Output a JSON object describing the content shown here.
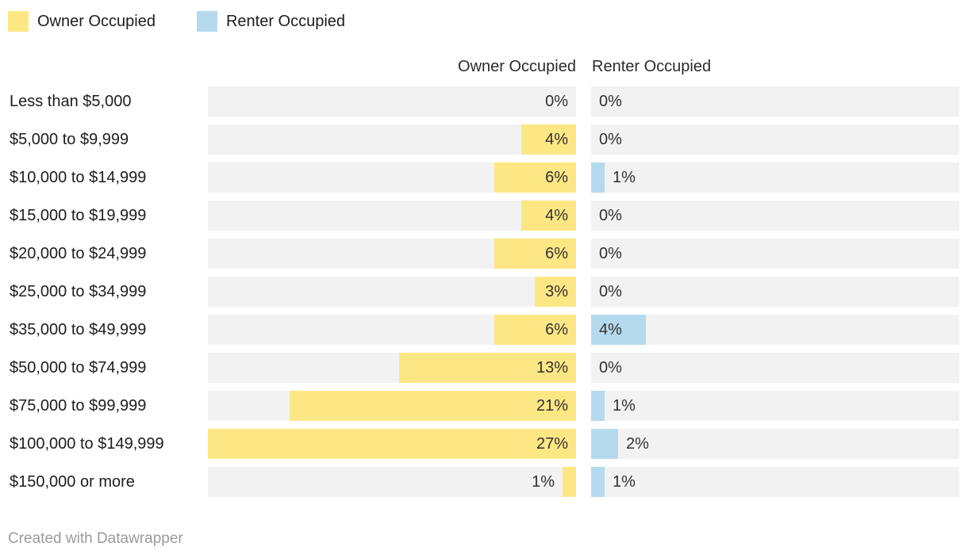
{
  "legend": {
    "items": [
      {
        "label": "Owner Occupied",
        "color": "#FDE784"
      },
      {
        "label": "Renter Occupied",
        "color": "#B5DAED"
      }
    ]
  },
  "headers": {
    "owner": "Owner Occupied",
    "renter": "Renter Occupied"
  },
  "footer": {
    "text": "Created with Datawrapper"
  },
  "colors": {
    "background": "#FFFFFF",
    "track": "#F2F2F2",
    "owner_bar": "#FDE784",
    "renter_bar": "#B5DAED",
    "label_text": "#1D1D1D",
    "value_text": "#313131",
    "footer_text": "#9B9B9B"
  },
  "chart_data": {
    "type": "bar",
    "orientation": "horizontal",
    "title": "",
    "unit": "%",
    "max_value": 27,
    "axis_range": [
      0,
      27
    ],
    "grid": false,
    "legend_position": "top-left",
    "categories": [
      "Less than $5,000",
      "$5,000 to $9,999",
      "$10,000 to $14,999",
      "$15,000 to $19,999",
      "$20,000 to $24,999",
      "$25,000 to $34,999",
      "$35,000 to $49,999",
      "$50,000 to $74,999",
      "$75,000 to $99,999",
      "$100,000 to $149,999",
      "$150,000 or more"
    ],
    "series": [
      {
        "name": "Owner Occupied",
        "color": "#FDE784",
        "alignment": "right",
        "values": [
          0,
          4,
          6,
          4,
          6,
          3,
          6,
          13,
          21,
          27,
          1
        ],
        "labels": [
          "0%",
          "4%",
          "6%",
          "4%",
          "6%",
          "3%",
          "6%",
          "13%",
          "21%",
          "27%",
          "1%"
        ]
      },
      {
        "name": "Renter Occupied",
        "color": "#B5DAED",
        "alignment": "left",
        "values": [
          0,
          0,
          1,
          0,
          0,
          0,
          4,
          0,
          1,
          2,
          1
        ],
        "labels": [
          "0%",
          "0%",
          "1%",
          "0%",
          "0%",
          "0%",
          "4%",
          "0%",
          "1%",
          "2%",
          "1%"
        ]
      }
    ]
  }
}
